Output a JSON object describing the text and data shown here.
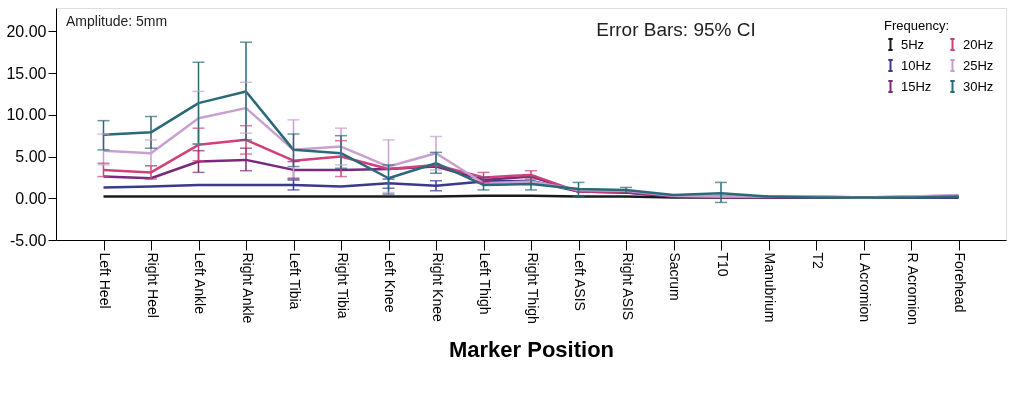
{
  "chart_data": {
    "type": "line",
    "xlabel": "Marker Position",
    "legend_title": "Frequency:",
    "legend": "top right",
    "grid": false,
    "marker": "none",
    "line_style": "solid",
    "annotations": [
      "Amplitude: 5mm",
      "Error Bars: 95% CI"
    ],
    "categories": [
      "Left Heel",
      "Right Heel",
      "Left Ankle",
      "Right Ankle",
      "Left Tibia",
      "Right Tibia",
      "Left Knee",
      "Right Knee",
      "Left Thigh",
      "Right Thigh",
      "Left ASIS",
      "Right ASIS",
      "Sacrum",
      "T10",
      "Manubrium",
      "T2",
      "L Acromion",
      "R Acromion",
      "Forehead"
    ],
    "ylim": [
      -5,
      22.8
    ],
    "yticks": [
      {
        "value": -5,
        "label": "-5.00"
      },
      {
        "value": 0,
        "label": "0.00"
      },
      {
        "value": 5,
        "label": "5.00"
      },
      {
        "value": 10,
        "label": "10.00"
      },
      {
        "value": 15,
        "label": "15.00"
      },
      {
        "value": 20,
        "label": "20.00"
      }
    ],
    "series": [
      {
        "name": "5Hz",
        "color": "#1a1a1a",
        "values": [
          0.2,
          0.2,
          0.2,
          0.2,
          0.2,
          0.2,
          0.2,
          0.2,
          0.3,
          0.3,
          0.2,
          0.2,
          0.1,
          0.1,
          0.1,
          0.1,
          0.1,
          0.1,
          0.1
        ],
        "errors": [
          null,
          null,
          null,
          null,
          null,
          null,
          null,
          null,
          null,
          null,
          null,
          null,
          null,
          null,
          null,
          null,
          null,
          null,
          null
        ]
      },
      {
        "name": "10Hz",
        "color": "#3a3a8c",
        "values": [
          1.3,
          1.4,
          1.6,
          1.6,
          1.6,
          1.4,
          1.8,
          1.5,
          2.0,
          2.1,
          0.8,
          0.7,
          0.2,
          0.2,
          0.1,
          0.1,
          0.1,
          0.1,
          0.1
        ],
        "errors": [
          null,
          null,
          null,
          null,
          [
            1.0,
            2.2
          ],
          null,
          [
            1.2,
            2.3
          ],
          [
            0.9,
            2.1
          ],
          null,
          null,
          null,
          null,
          null,
          null,
          null,
          null,
          null,
          null,
          null
        ]
      },
      {
        "name": "15Hz",
        "color": "#7a2a7a",
        "values": [
          2.6,
          2.4,
          4.4,
          4.6,
          3.4,
          3.4,
          3.5,
          3.8,
          2.2,
          2.6,
          0.8,
          0.7,
          0.2,
          0.1,
          0.1,
          0.1,
          0.1,
          0.1,
          0.2
        ],
        "errors": [
          null,
          null,
          [
            3.1,
            5.7
          ],
          [
            3.3,
            6.0
          ],
          [
            2.4,
            4.4
          ],
          null,
          null,
          null,
          null,
          null,
          null,
          null,
          null,
          null,
          null,
          null,
          null,
          null,
          null
        ]
      },
      {
        "name": "20Hz",
        "color": "#d0407a",
        "values": [
          3.4,
          3.1,
          6.4,
          7.0,
          4.5,
          5.0,
          3.5,
          4.0,
          2.5,
          2.8,
          0.8,
          0.8,
          0.3,
          0.2,
          0.2,
          0.2,
          0.1,
          0.2,
          0.3
        ],
        "errors": [
          [
            2.6,
            4.2
          ],
          [
            2.3,
            3.9
          ],
          [
            4.5,
            8.4
          ],
          [
            5.3,
            8.7
          ],
          null,
          [
            2.6,
            6.9
          ],
          null,
          null,
          [
            1.9,
            3.1
          ],
          [
            2.3,
            3.3
          ],
          null,
          null,
          null,
          null,
          null,
          null,
          null,
          null,
          null
        ]
      },
      {
        "name": "25Hz",
        "color": "#c8a0d0",
        "values": [
          5.7,
          5.4,
          9.6,
          10.8,
          5.8,
          6.2,
          3.8,
          5.4,
          1.8,
          2.0,
          1.0,
          0.9,
          0.3,
          0.2,
          0.2,
          0.2,
          0.1,
          0.2,
          0.4
        ],
        "errors": [
          [
            4.0,
            7.7
          ],
          [
            3.9,
            7.0
          ],
          [
            6.5,
            12.8
          ],
          [
            7.8,
            13.9
          ],
          [
            2.2,
            9.4
          ],
          [
            4.0,
            8.4
          ],
          [
            0.7,
            7.0
          ],
          [
            3.4,
            7.4
          ],
          null,
          null,
          null,
          null,
          null,
          null,
          null,
          null,
          null,
          null,
          null
        ]
      },
      {
        "name": "30Hz",
        "color": "#2a6a78",
        "values": [
          7.6,
          7.9,
          11.4,
          12.8,
          5.8,
          5.4,
          2.4,
          4.2,
          1.6,
          1.7,
          1.1,
          1.0,
          0.4,
          0.6,
          0.2,
          0.1,
          0.1,
          0.1,
          0.2
        ],
        "errors": [
          [
            5.8,
            9.3
          ],
          [
            6.0,
            9.8
          ],
          [
            6.5,
            16.3
          ],
          [
            7.0,
            18.7
          ],
          [
            3.8,
            7.7
          ],
          [
            3.6,
            7.5
          ],
          [
            0.5,
            4.0
          ],
          [
            3.0,
            5.5
          ],
          [
            1.0,
            2.5
          ],
          [
            1.0,
            2.5
          ],
          [
            0.2,
            1.9
          ],
          [
            0.6,
            1.3
          ],
          null,
          [
            -0.5,
            1.9
          ],
          null,
          null,
          null,
          null,
          null
        ]
      }
    ]
  }
}
